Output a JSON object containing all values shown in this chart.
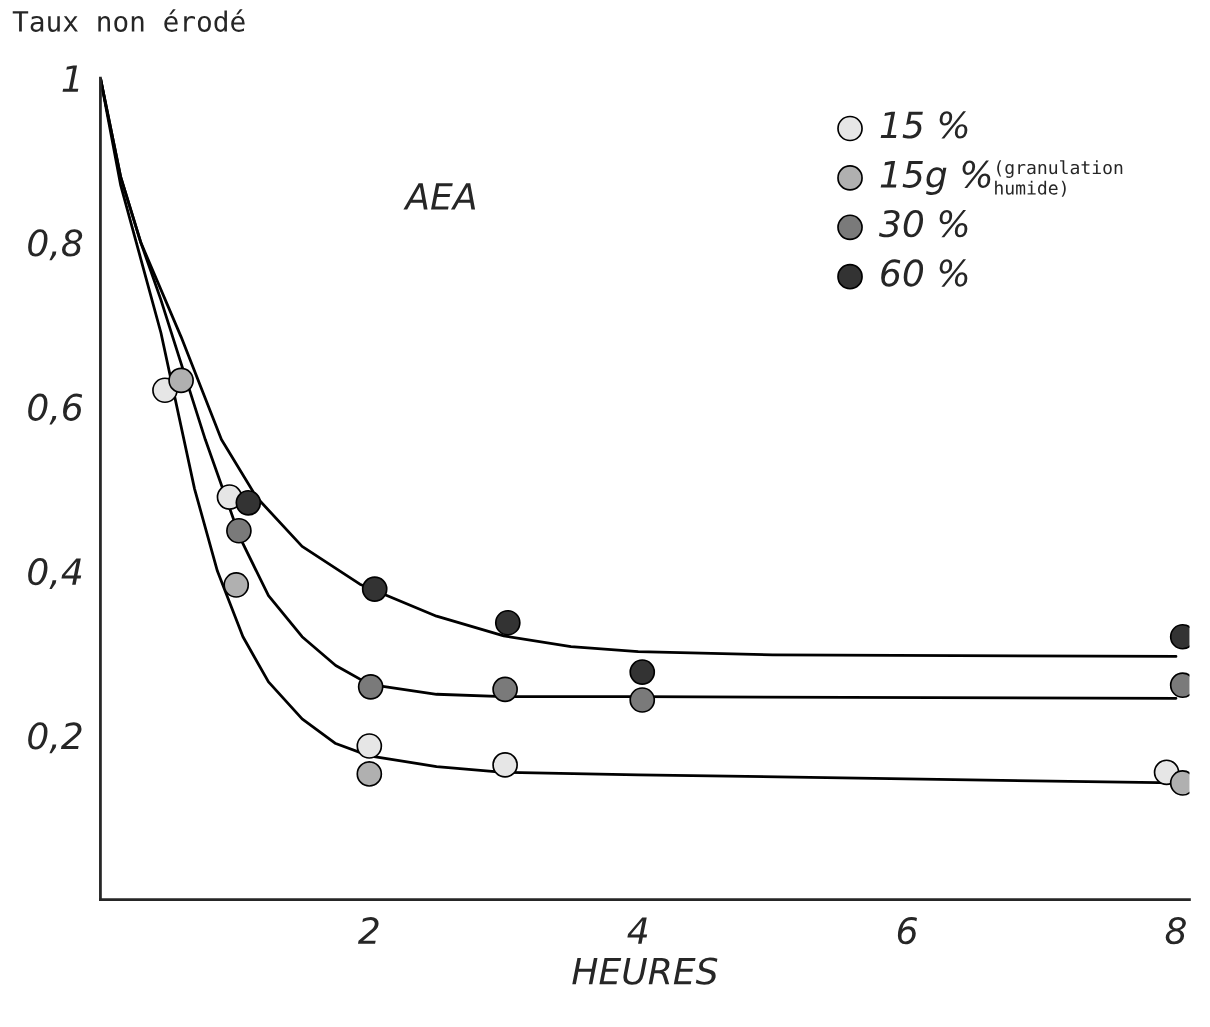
{
  "chart_data": {
    "type": "scatter",
    "ylabel": "Taux non érodé",
    "xlabel": "HEURES",
    "annotations": [
      "AEA",
      "(granulation humide)"
    ],
    "xlim": [
      0,
      8.1
    ],
    "ylim": [
      0,
      1.0
    ],
    "xticks": [
      2,
      4,
      6,
      8
    ],
    "yticks": [
      {
        "value": 0.2,
        "label": "0,2"
      },
      {
        "value": 0.4,
        "label": "0,4"
      },
      {
        "value": 0.6,
        "label": "0,6"
      },
      {
        "value": 0.8,
        "label": "0,8"
      },
      {
        "value": 1.0,
        "label": "1"
      }
    ],
    "grid": false,
    "legend": "top right",
    "marker": "circle",
    "series": [
      {
        "name": "15 %",
        "color": "#e6e6e6",
        "x": [
          0.48,
          0.96,
          2.0,
          3.01,
          7.93
        ],
        "values": [
          0.62,
          0.49,
          0.187,
          0.164,
          0.155
        ]
      },
      {
        "name": "15g %",
        "color": "#b0b0b0",
        "x": [
          0.6,
          1.01,
          2.0,
          8.05
        ],
        "values": [
          0.632,
          0.383,
          0.153,
          0.142
        ]
      },
      {
        "name": "30 %",
        "color": "#7a7a7a",
        "x": [
          1.03,
          2.01,
          3.01,
          4.03,
          8.05
        ],
        "values": [
          0.449,
          0.259,
          0.256,
          0.243,
          0.261
        ]
      },
      {
        "name": "60 %",
        "color": "#333333",
        "x": [
          1.1,
          2.04,
          3.03,
          4.03,
          8.05
        ],
        "values": [
          0.483,
          0.378,
          0.337,
          0.277,
          0.32
        ]
      },
      {
        "type": "line",
        "color": "#000000",
        "marker": "none",
        "x": [
          0,
          0.15,
          0.3,
          0.6,
          0.9,
          1.16,
          1.5,
          1.93,
          2.5,
          3,
          3.5,
          4,
          5,
          8
        ],
        "values": [
          1.0,
          0.88,
          0.8,
          0.685,
          0.56,
          0.49,
          0.43,
          0.384,
          0.345,
          0.321,
          0.308,
          0.302,
          0.298,
          0.296
        ]
      },
      {
        "type": "line",
        "color": "#000000",
        "marker": "none",
        "x": [
          0,
          0.15,
          0.3,
          0.45,
          0.78,
          1.04,
          1.25,
          1.5,
          1.75,
          2.0,
          2.5,
          3,
          4,
          8
        ],
        "values": [
          1.0,
          0.88,
          0.8,
          0.73,
          0.56,
          0.44,
          0.37,
          0.32,
          0.285,
          0.262,
          0.25,
          0.247,
          0.247,
          0.245
        ]
      },
      {
        "type": "line",
        "color": "#000000",
        "marker": "none",
        "x": [
          0,
          0.15,
          0.3,
          0.45,
          0.7,
          0.87,
          1.06,
          1.25,
          1.5,
          1.75,
          2.0,
          2.5,
          3,
          4,
          8
        ],
        "values": [
          1.0,
          0.87,
          0.78,
          0.69,
          0.5,
          0.4,
          0.32,
          0.265,
          0.22,
          0.19,
          0.175,
          0.162,
          0.155,
          0.152,
          0.142
        ]
      }
    ]
  }
}
